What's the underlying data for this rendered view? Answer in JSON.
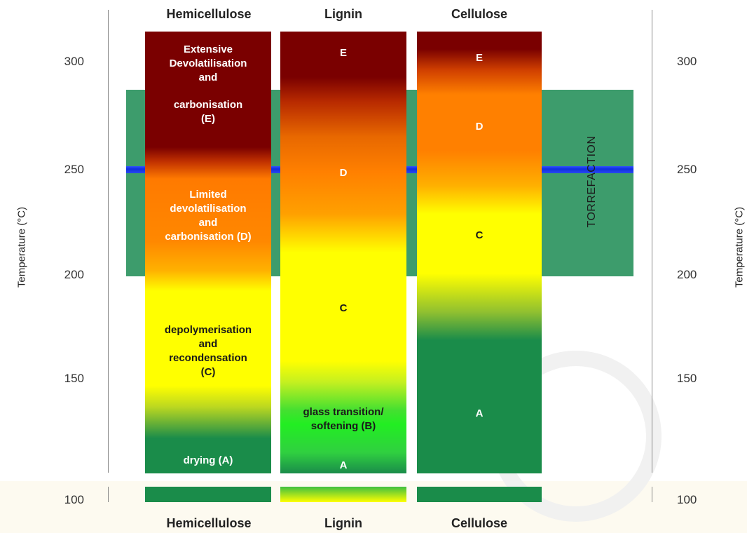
{
  "columns": {
    "hemicellulose": "Hemicellulose",
    "lignin": "Lignin",
    "cellulose": "Cellulose"
  },
  "axis": {
    "label": "Temperature (°C)",
    "ticks": [
      "300",
      "250",
      "200",
      "150",
      "100"
    ]
  },
  "hemicellulose": {
    "e": "Extensive\nDevolatilisation\nand",
    "e2": "carbonisation\n(E)",
    "d": "Limited\ndevolatilisation\nand\ncarbonisation (D)",
    "c": "depolymerisation\nand\nrecondensation\n(C)",
    "a": "drying (A)"
  },
  "lignin": {
    "e": "E",
    "d": "D",
    "c": "C",
    "b": "glass transition/\nsoftening (B)",
    "a": "A"
  },
  "cellulose": {
    "e": "E",
    "d": "D",
    "c": "C",
    "a": "A"
  },
  "torrefaction": "TORREFACTION",
  "colors": {
    "dark_red": "#7a0000",
    "orange": "#ff8000",
    "yellow": "#ffff00",
    "green": "#1a8c4a",
    "bright_green": "#22ee22",
    "torrefaction": "#3d9c6c",
    "blue_line": "#1030e0"
  }
}
